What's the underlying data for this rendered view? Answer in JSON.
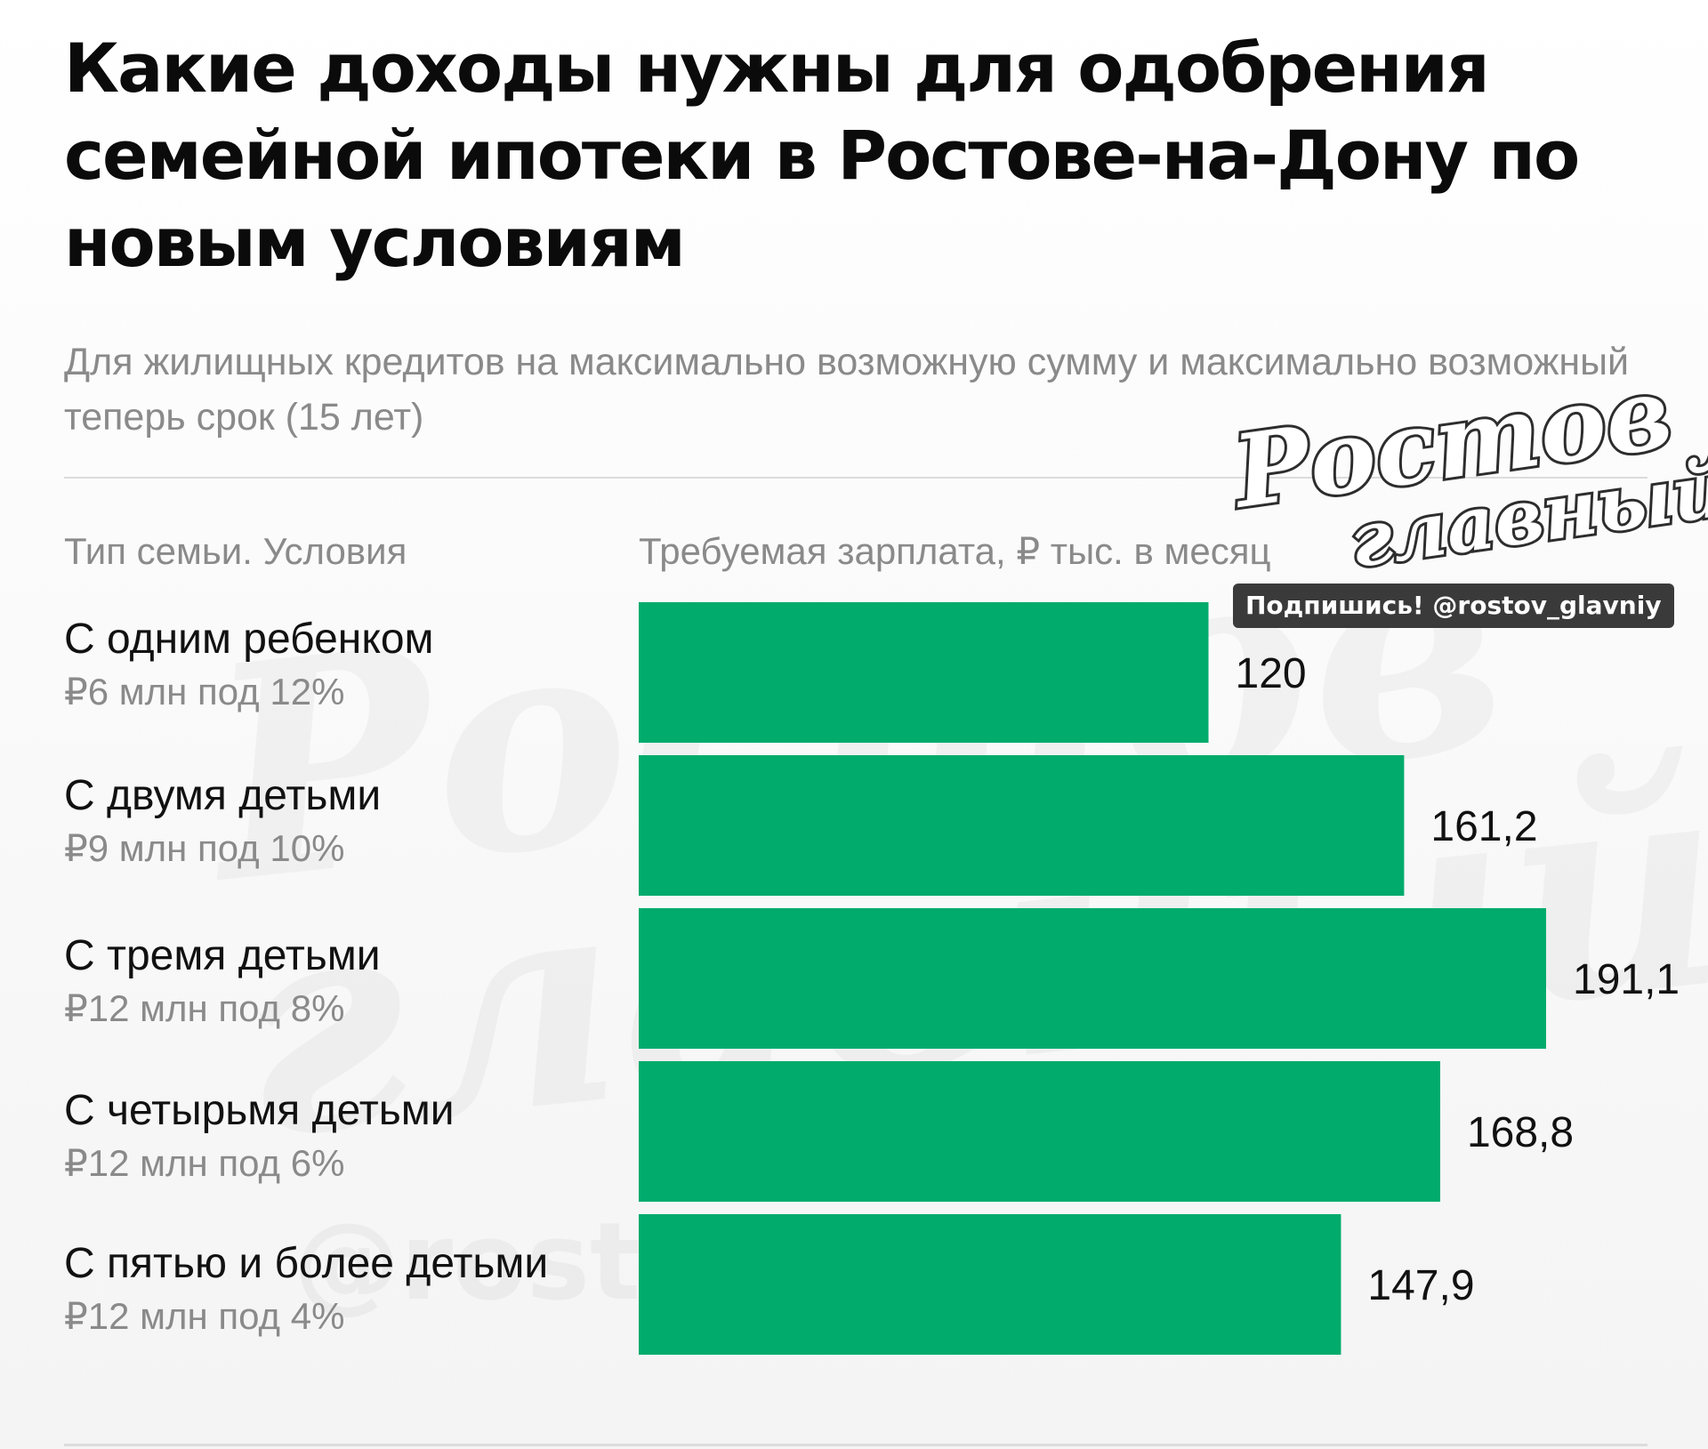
{
  "header": {
    "title": "Какие доходы нужны для одобрения семейной ипотеки в Ростове-на-Дону по новым условиям",
    "subtitle": "Для жилищных кредитов на максимально возможную сумму и максимально возможный теперь срок (15 лет)"
  },
  "columns": {
    "left": "Тип семьи. Условия",
    "right": "Требуемая зарплата, ₽ тыс. в месяц"
  },
  "logo": {
    "line1": "Ростов",
    "line2": "главный",
    "tagline": "Подпишись! @rostov_glavniy"
  },
  "watermark": {
    "line1": "Ростов",
    "line2": "главный",
    "handle": "@rostov_glavniy"
  },
  "rows": [
    {
      "name": "С одним ребенком",
      "condition": "₽6 млн под 12%"
    },
    {
      "name": "С двумя детьми",
      "condition": "₽9 млн под 10%"
    },
    {
      "name": "С тремя детьми",
      "condition": "₽12 млн под 8%"
    },
    {
      "name": "С четырьмя детьми",
      "condition": "₽12 млн под 6%"
    },
    {
      "name": "С пятью и более детьми",
      "condition": "₽12 млн под 4%"
    }
  ],
  "colors": {
    "bar": "#00ab6c",
    "text": "#111111",
    "muted": "#8a8a8a"
  },
  "chart_data": {
    "type": "bar",
    "orientation": "horizontal",
    "categories": [
      "С одним ребенком",
      "С двумя детьми",
      "С тремя детьми",
      "С четырьмя детьми",
      "С пятью и более детьми"
    ],
    "values": [
      120,
      161.2,
      191.1,
      168.8,
      147.9
    ],
    "value_labels": [
      "120",
      "161,2",
      "191,1",
      "168,8",
      "147,9"
    ],
    "title": "Какие доходы нужны для одобрения семейной ипотеки в Ростове-на-Дону по новым условиям",
    "xlabel": "Требуемая зарплата, ₽ тыс. в месяц",
    "ylabel": "Тип семьи. Условия",
    "xlim": [
      0,
      191.1
    ],
    "grid": false,
    "legend": "none"
  }
}
